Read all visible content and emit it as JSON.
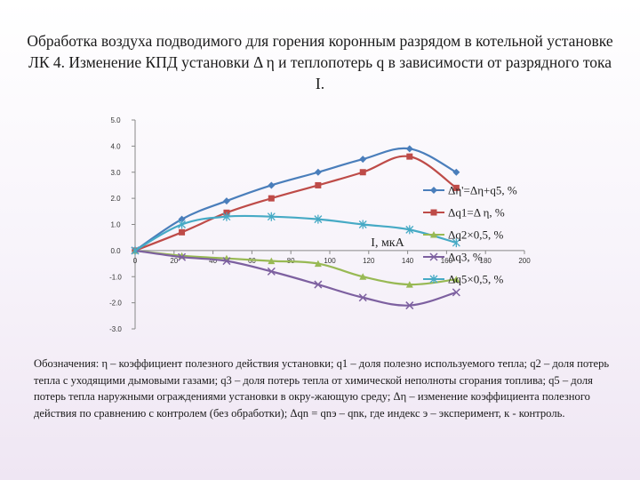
{
  "title": "Обработка воздуха подводимого для горения коронным разрядом в котельной установке ЛК 4. Изменение КПД установки Δ η и теплопотерь q в зависимости от разрядного тока I.",
  "caption": "Обозначения: η – коэффициент полезного действия установки; q1 – доля полезно используемого тепла; q2 – доля потерь тепла с уходящими дымовыми газами; q3 – доля потерь тепла от химической неполноты сгорания топлива; q5 – доля потерь тепла наружными ограждениями установки в окру-жающую среду; Δη – изменение коэффициента полезного действия по сравнению с контролем (без обработки); Δqn = qnэ – qnк, где индекс э – эксперимент, к - контроль.",
  "chart_data": {
    "type": "line",
    "xlabel": "I, мкА",
    "ylabel": "",
    "xlim": [
      0,
      200
    ],
    "ylim": [
      -3,
      5
    ],
    "x_ticks": [
      0,
      20,
      40,
      60,
      80,
      100,
      120,
      140,
      160,
      180,
      200
    ],
    "y_ticks": [
      5,
      4,
      3,
      2,
      1,
      0,
      -1,
      -2,
      -3
    ],
    "x_tick_labels": [
      "0",
      "20",
      "40",
      "60",
      "80",
      "100",
      "120",
      "140",
      "160",
      "180",
      "200"
    ],
    "y_tick_labels": [
      "5.0",
      "4.0",
      "3.0",
      "2.0",
      "1.0",
      "0.0",
      "-1.0",
      "-2.0",
      "-3.0"
    ],
    "legend_position": "right",
    "series": [
      {
        "name": "Δη'=Δη+q5, %",
        "color": "#4a7ebb",
        "marker": "diamond",
        "x": [
          0,
          24,
          47,
          70,
          94,
          117,
          141,
          165
        ],
        "y": [
          0,
          1.2,
          1.9,
          2.5,
          3.0,
          3.5,
          3.9,
          3.0
        ]
      },
      {
        "name": "Δq1=Δ η, %",
        "color": "#be4b48",
        "marker": "square",
        "x": [
          0,
          24,
          47,
          70,
          94,
          117,
          141,
          165
        ],
        "y": [
          0,
          0.7,
          1.45,
          2.0,
          2.5,
          3.0,
          3.6,
          2.4
        ]
      },
      {
        "name": "Δq2×0,5, %",
        "color": "#98b954",
        "marker": "triangle",
        "x": [
          0,
          24,
          47,
          70,
          94,
          117,
          141,
          165
        ],
        "y": [
          0,
          -0.2,
          -0.3,
          -0.4,
          -0.5,
          -1.0,
          -1.3,
          -1.1
        ]
      },
      {
        "name": "Δq3, %",
        "color": "#7d60a0",
        "marker": "x",
        "x": [
          0,
          24,
          47,
          70,
          94,
          117,
          141,
          165
        ],
        "y": [
          0,
          -0.25,
          -0.4,
          -0.8,
          -1.3,
          -1.8,
          -2.1,
          -1.6
        ]
      },
      {
        "name": "Δq5×0,5, %",
        "color": "#46aac5",
        "marker": "star",
        "x": [
          0,
          24,
          47,
          70,
          94,
          117,
          141,
          165
        ],
        "y": [
          0,
          1.0,
          1.3,
          1.3,
          1.2,
          1.0,
          0.8,
          0.3
        ]
      }
    ]
  }
}
